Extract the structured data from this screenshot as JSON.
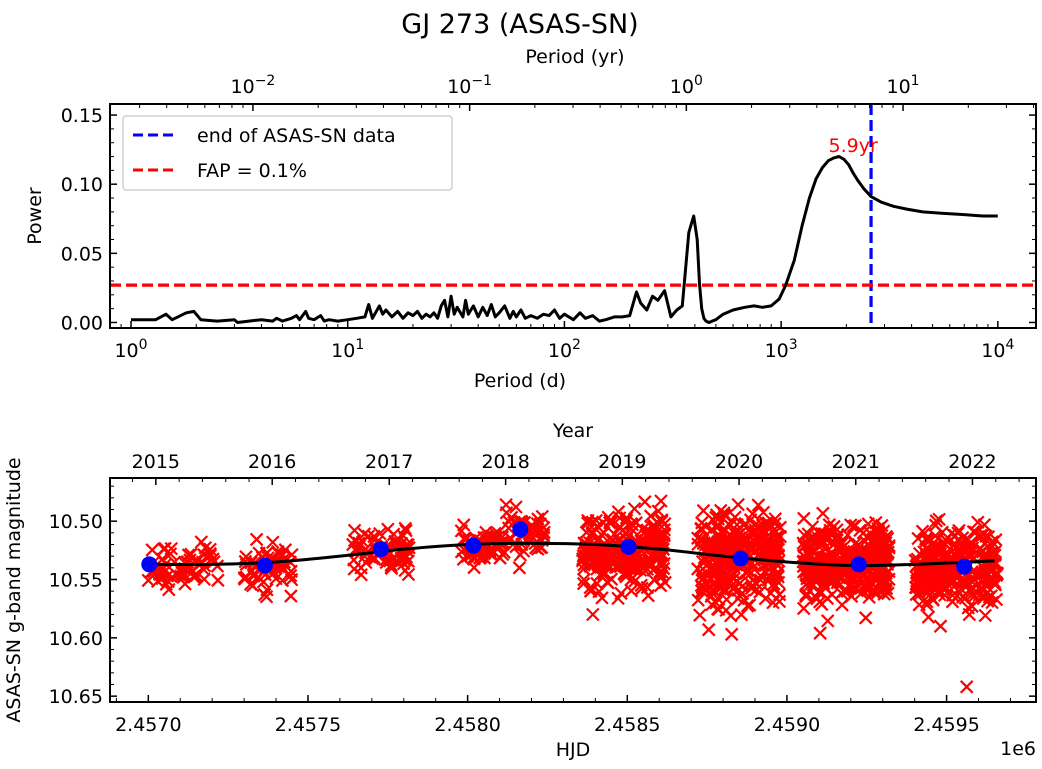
{
  "figure": {
    "title": "GJ 273 (ASAS-SN)"
  },
  "chart_data": [
    {
      "type": "line",
      "panel": "periodogram",
      "title": "GJ 273 (ASAS-SN)",
      "xlabel": "Period (d)",
      "ylabel": "Power",
      "x_scale": "log",
      "xlim": [
        0.8,
        15000
      ],
      "ylim": [
        -0.004,
        0.158
      ],
      "x_ticks": [
        1,
        10,
        100,
        1000,
        10000
      ],
      "x_tick_labels": [
        {
          "base": "10",
          "exp": "0"
        },
        {
          "base": "10",
          "exp": "1"
        },
        {
          "base": "10",
          "exp": "2"
        },
        {
          "base": "10",
          "exp": "3"
        },
        {
          "base": "10",
          "exp": "4"
        }
      ],
      "y_ticks": [
        0.0,
        0.05,
        0.1,
        0.15
      ],
      "y_tick_labels": [
        "0.00",
        "0.05",
        "0.10",
        "0.15"
      ],
      "secondary_x": {
        "label": "Period (yr)",
        "scale": "log",
        "ticks_yr": [
          0.01,
          0.1,
          1,
          10
        ],
        "tick_labels": [
          {
            "base": "10",
            "exp": "−2"
          },
          {
            "base": "10",
            "exp": "−1"
          },
          {
            "base": "10",
            "exp": "0"
          },
          {
            "base": "10",
            "exp": "1"
          }
        ]
      },
      "series": [
        {
          "name": "periodogram",
          "color": "#000000",
          "x": [
            1.0,
            1.3,
            1.45,
            1.55,
            1.8,
            1.95,
            2.1,
            2.5,
            3.0,
            3.1,
            3.5,
            4.0,
            4.5,
            4.7,
            5.0,
            5.5,
            5.8,
            6.0,
            6.4,
            6.6,
            7.0,
            7.5,
            7.8,
            8.2,
            9.0,
            10.0,
            11.0,
            12.0,
            12.5,
            13.0,
            14.0,
            14.5,
            15.0,
            16.0,
            17.0,
            18.0,
            19.0,
            20.0,
            21.0,
            22.0,
            23.0,
            24.0,
            25.0,
            26.0,
            27.0,
            28.0,
            29.0,
            30.0,
            31.0,
            32.0,
            34.0,
            35.0,
            36.0,
            38.0,
            40.0,
            42.0,
            44.0,
            46.0,
            48.0,
            50.0,
            53.0,
            56.0,
            58.0,
            60.0,
            63.0,
            66.0,
            70.0,
            75.0,
            80.0,
            85.0,
            90.0,
            95.0,
            100.0,
            110.0,
            118.0,
            125.0,
            135.0,
            145.0,
            155.0,
            170.0,
            185.0,
            200.0,
            215.0,
            225.0,
            240.0,
            255.0,
            270.0,
            290.0,
            310.0,
            330.0,
            350.0,
            375.0,
            395.0,
            410.0,
            420.0,
            430.0,
            440.0,
            450.0,
            465.0,
            480.0,
            500.0,
            540.0,
            600.0,
            680.0,
            750.0,
            820.0,
            900.0,
            980.0,
            1050.0,
            1150.0,
            1250.0,
            1350.0,
            1450.0,
            1550.0,
            1650.0,
            1750.0,
            1850.0,
            1950.0,
            2050.0,
            2150.0,
            2250.0,
            2400.0,
            2600.0,
            2900.0,
            3300.0,
            3800.0,
            4500.0,
            5500.0,
            7000.0,
            8500.0,
            10000.0
          ],
          "y": [
            0.002,
            0.002,
            0.006,
            0.002,
            0.007,
            0.008,
            0.002,
            0.001,
            0.002,
            0.0,
            0.001,
            0.002,
            0.001,
            0.003,
            0.001,
            0.003,
            0.005,
            0.002,
            0.008,
            0.003,
            0.002,
            0.005,
            0.001,
            0.002,
            0.001,
            0.002,
            0.003,
            0.004,
            0.013,
            0.003,
            0.012,
            0.006,
            0.009,
            0.004,
            0.008,
            0.003,
            0.007,
            0.005,
            0.008,
            0.003,
            0.006,
            0.004,
            0.007,
            0.003,
            0.012,
            0.016,
            0.004,
            0.019,
            0.006,
            0.011,
            0.004,
            0.016,
            0.006,
            0.012,
            0.004,
            0.011,
            0.005,
            0.013,
            0.004,
            0.007,
            0.012,
            0.003,
            0.008,
            0.004,
            0.009,
            0.003,
            0.005,
            0.003,
            0.006,
            0.005,
            0.009,
            0.003,
            0.006,
            0.002,
            0.007,
            0.003,
            0.005,
            0.001,
            0.002,
            0.004,
            0.004,
            0.005,
            0.022,
            0.014,
            0.009,
            0.019,
            0.016,
            0.023,
            0.004,
            0.009,
            0.012,
            0.065,
            0.077,
            0.06,
            0.028,
            0.01,
            0.003,
            0.001,
            0.0,
            0.001,
            0.002,
            0.006,
            0.009,
            0.011,
            0.012,
            0.011,
            0.012,
            0.017,
            0.027,
            0.045,
            0.07,
            0.09,
            0.104,
            0.112,
            0.117,
            0.119,
            0.12,
            0.118,
            0.114,
            0.108,
            0.103,
            0.097,
            0.091,
            0.087,
            0.084,
            0.082,
            0.08,
            0.079,
            0.078,
            0.077,
            0.077
          ]
        }
      ],
      "reference_lines": [
        {
          "name": "end of ASAS-SN data",
          "orientation": "vertical",
          "x": 2600,
          "color": "#0000ff",
          "style": "dashed"
        },
        {
          "name": "FAP = 0.1%",
          "orientation": "horizontal",
          "y": 0.027,
          "color": "#ff0000",
          "style": "dashed"
        }
      ],
      "annotations": [
        {
          "text": "5.9yr",
          "x": 2150,
          "y": 0.132,
          "color": "#ff0000"
        }
      ],
      "legend": {
        "placement": "top-left",
        "entries": [
          {
            "label": "end of ASAS-SN data",
            "color": "#0000ff",
            "style": "dashed"
          },
          {
            "label": "FAP = 0.1%",
            "color": "#ff0000",
            "style": "dashed"
          }
        ]
      },
      "grid": false
    },
    {
      "type": "scatter",
      "panel": "light-curve",
      "xlabel": "HJD",
      "x_offset_label": "1e6",
      "ylabel": "ASAS-SN g-band magnitude",
      "xlim": [
        2.45688,
        2.45978
      ],
      "ylim": [
        10.655,
        10.463
      ],
      "y_inverted": true,
      "x_ticks": [
        2.457,
        2.4575,
        2.458,
        2.4585,
        2.459,
        2.4595
      ],
      "x_tick_labels": [
        "2.4570",
        "2.4575",
        "2.4580",
        "2.4585",
        "2.4590",
        "2.4595"
      ],
      "y_ticks": [
        10.5,
        10.55,
        10.6,
        10.65
      ],
      "y_tick_labels": [
        "10.50",
        "10.55",
        "10.60",
        "10.65"
      ],
      "secondary_x": {
        "label": "Year",
        "ticks": [
          2015,
          2016,
          2017,
          2018,
          2019,
          2020,
          2021,
          2022
        ],
        "tick_labels": [
          "2015",
          "2016",
          "2017",
          "2018",
          "2019",
          "2020",
          "2021",
          "2022"
        ],
        "tick_hjd_1e6": [
          2.4570235,
          2.457388,
          2.4577545,
          2.458119,
          2.4584845,
          2.45885,
          2.4592155,
          2.459581
        ]
      },
      "series": [
        {
          "name": "observations",
          "marker": "x",
          "color": "#ff0000",
          "seasons": [
            {
              "start": 2.45699,
              "end": 2.45722,
              "mean": 10.538,
              "spread": 0.012,
              "n": 60
            },
            {
              "start": 2.4573,
              "end": 2.45745,
              "mean": 10.54,
              "spread": 0.014,
              "n": 60
            },
            {
              "start": 2.45764,
              "end": 2.45782,
              "mean": 10.527,
              "spread": 0.012,
              "n": 70
            },
            {
              "start": 2.45798,
              "end": 2.45812,
              "mean": 10.522,
              "spread": 0.011,
              "n": 60
            },
            {
              "start": 2.45812,
              "end": 2.45824,
              "mean": 10.51,
              "spread": 0.015,
              "n": 50
            },
            {
              "start": 2.45836,
              "end": 2.45862,
              "mean": 10.525,
              "spread": 0.022,
              "n": 260
            },
            {
              "start": 2.45872,
              "end": 2.45898,
              "mean": 10.532,
              "spread": 0.026,
              "n": 300
            },
            {
              "start": 2.45905,
              "end": 2.45932,
              "mean": 10.537,
              "spread": 0.022,
              "n": 360
            },
            {
              "start": 2.4594,
              "end": 2.45966,
              "mean": 10.54,
              "spread": 0.022,
              "n": 300
            }
          ],
          "outliers": [
            {
              "x": 2.459563,
              "y": 10.642
            },
            {
              "x": 2.459104,
              "y": 10.596
            },
            {
              "x": 2.458755,
              "y": 10.593
            },
            {
              "x": 2.458827,
              "y": 10.597
            },
            {
              "x": 2.459481,
              "y": 10.59
            },
            {
              "x": 2.458392,
              "y": 10.58
            }
          ]
        },
        {
          "name": "binned means",
          "marker": "o",
          "color": "#0000ff",
          "x": [
            2.457003,
            2.457365,
            2.457728,
            2.458018,
            2.458165,
            2.458504,
            2.458855,
            2.459225,
            2.459555
          ],
          "y": [
            10.537,
            10.538,
            10.524,
            10.521,
            10.507,
            10.522,
            10.532,
            10.537,
            10.539
          ]
        },
        {
          "name": "sinusoidal fit",
          "type": "line",
          "color": "#000000",
          "x": [
            2.45699,
            2.4572,
            2.4574,
            2.4576,
            2.4578,
            2.458,
            2.4582,
            2.4584,
            2.4586,
            2.4588,
            2.459,
            2.4592,
            2.4594,
            2.45965
          ],
          "y": [
            10.537,
            10.537,
            10.535,
            10.53,
            10.524,
            10.52,
            10.519,
            10.52,
            10.524,
            10.53,
            10.535,
            10.538,
            10.537,
            10.534
          ]
        }
      ],
      "grid": false
    }
  ]
}
